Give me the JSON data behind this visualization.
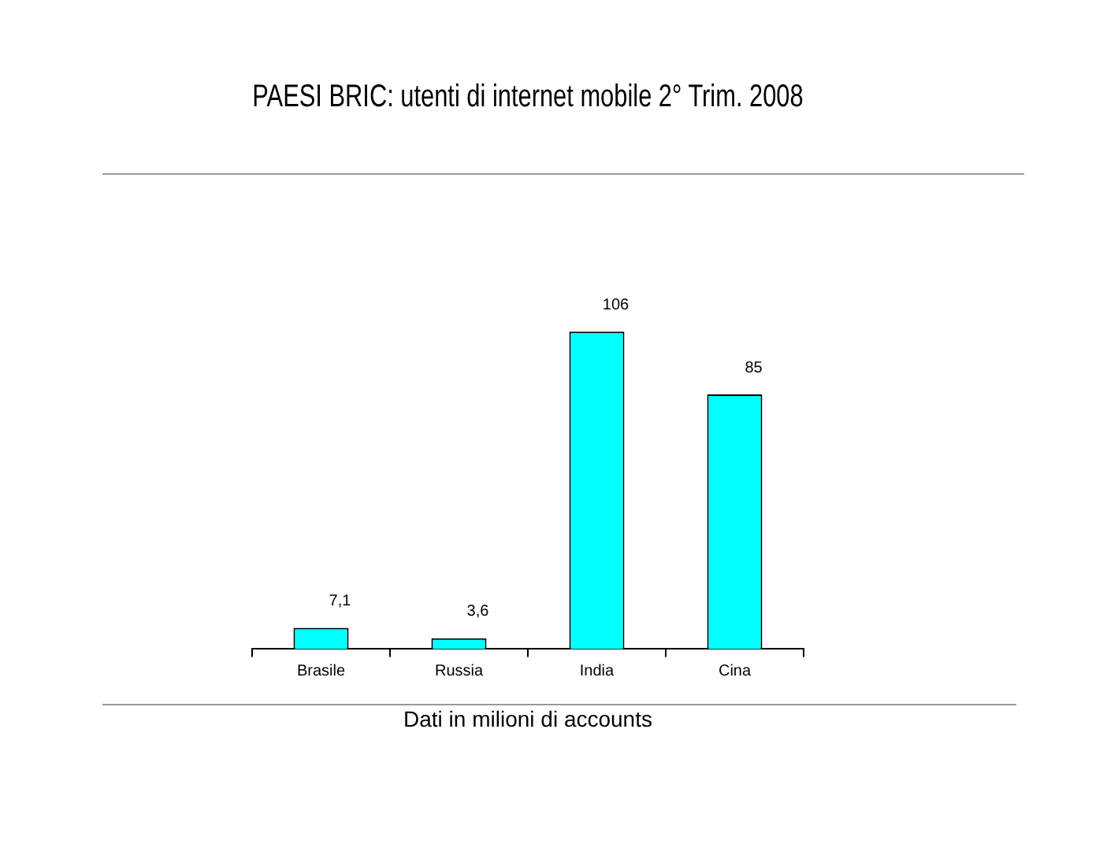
{
  "chart_data": {
    "type": "bar",
    "title": "PAESI BRIC: utenti di internet mobile 2° Trim. 2008",
    "xlabel": "Dati in milioni di accounts",
    "categories": [
      "Brasile",
      "Russia",
      "India",
      "Cina"
    ],
    "values": [
      7.1,
      3.6,
      106,
      85
    ],
    "value_labels": [
      "7,1",
      "3,6",
      "106",
      "85"
    ],
    "color": "#00ffff",
    "grid": false,
    "legend": false
  }
}
